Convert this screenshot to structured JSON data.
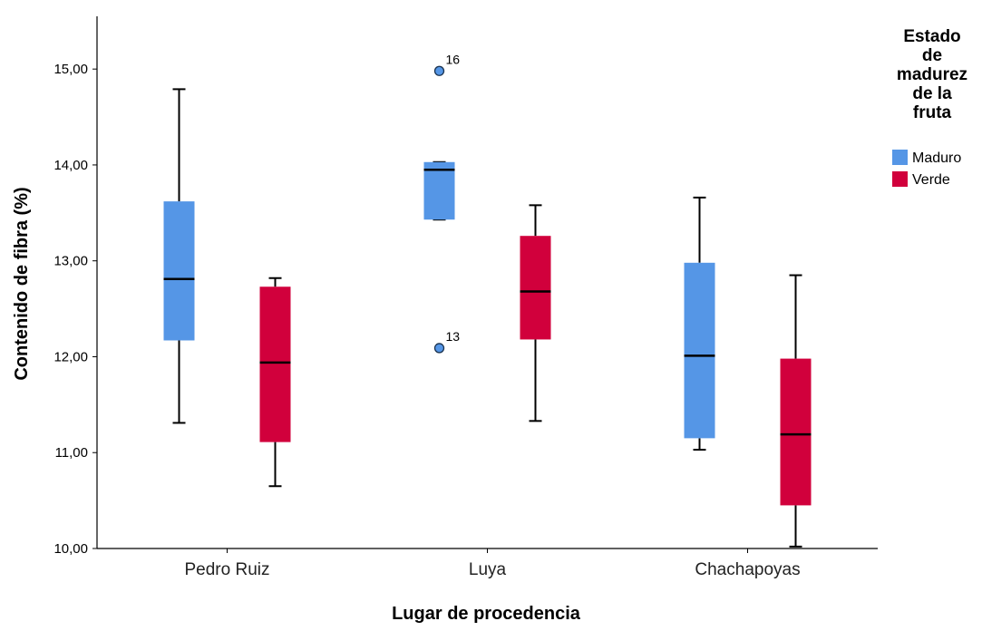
{
  "chart_data": {
    "type": "boxplot",
    "xlabel": "Lugar de procedencia",
    "ylabel": "Contenido de fibra (%)",
    "ylim": [
      10.0,
      15.55
    ],
    "yticks": [
      "10,00",
      "11,00",
      "12,00",
      "13,00",
      "14,00",
      "15,00"
    ],
    "categories": [
      "Pedro Ruiz",
      "Luya",
      "Chachapoyas"
    ],
    "legend": {
      "title_lines": [
        "Estado",
        "de",
        "madurez",
        "de la",
        "fruta"
      ],
      "position": "right"
    },
    "series": [
      {
        "name": "Maduro",
        "color": "#5596e6",
        "boxes": [
          {
            "min": 11.31,
            "q1": 12.17,
            "median": 12.81,
            "q3": 13.62,
            "max": 14.79
          },
          {
            "min": 13.43,
            "q1": 13.43,
            "median": 13.95,
            "q3": 14.03,
            "max": 14.03,
            "outliers": [
              {
                "value": 14.98,
                "label": "16"
              },
              {
                "value": 12.09,
                "label": "13"
              }
            ]
          },
          {
            "min": 11.03,
            "q1": 11.15,
            "median": 12.01,
            "q3": 12.98,
            "max": 13.66
          }
        ]
      },
      {
        "name": "Verde",
        "color": "#d1003c",
        "boxes": [
          {
            "min": 10.65,
            "q1": 11.11,
            "median": 11.94,
            "q3": 12.73,
            "max": 12.82
          },
          {
            "min": 11.33,
            "q1": 12.18,
            "median": 12.68,
            "q3": 13.26,
            "max": 13.58
          },
          {
            "min": 10.02,
            "q1": 10.45,
            "median": 11.19,
            "q3": 11.98,
            "max": 12.85
          }
        ]
      }
    ]
  }
}
